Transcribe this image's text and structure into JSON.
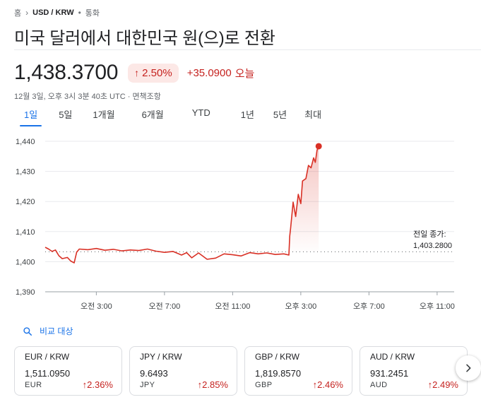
{
  "breadcrumb": {
    "home": "홈",
    "pair": "USD / KRW",
    "category": "통화"
  },
  "title": "미국 달러에서 대한민국 원(으)로 전환",
  "quote": {
    "price": "1,438.3700",
    "percent_change": "2.50%",
    "absolute_change": "+35.0900",
    "period_label": "오늘",
    "timestamp": "12월 3일, 오후 3시 3분 40초 UTC · 면책조항",
    "trend": "up",
    "trend_color": "#c5221f"
  },
  "tabs": [
    {
      "label": "1일",
      "active": true
    },
    {
      "label": "5일",
      "active": false
    },
    {
      "label": "1개월",
      "active": false
    },
    {
      "label": "6개월",
      "active": false
    },
    {
      "label": "YTD",
      "active": false
    },
    {
      "label": "1년",
      "active": false
    },
    {
      "label": "5년",
      "active": false
    },
    {
      "label": "최대",
      "active": false
    }
  ],
  "chart_data": {
    "type": "line",
    "y_ticks": [
      "1,440",
      "1,430",
      "1,420",
      "1,410",
      "1,400",
      "1,390"
    ],
    "x_ticks": [
      "오전 3:00",
      "오전 7:00",
      "오전 11:00",
      "오후 3:00",
      "오후 7:00",
      "오후 11:00"
    ],
    "ylim": [
      1390,
      1440
    ],
    "xlim": [
      0,
      24
    ],
    "previous_close_label": "전일 종가:",
    "previous_close_value": "1,403.2800",
    "previous_close": 1403.28,
    "line_color": "#d93025",
    "grid": true,
    "series": [
      {
        "values": [
          [
            0.0,
            1404.8
          ],
          [
            0.2,
            1404.2
          ],
          [
            0.4,
            1403.4
          ],
          [
            0.6,
            1403.9
          ],
          [
            0.8,
            1402.0
          ],
          [
            1.0,
            1401.0
          ],
          [
            1.3,
            1401.4
          ],
          [
            1.5,
            1400.2
          ],
          [
            1.7,
            1399.6
          ],
          [
            1.85,
            1403.2
          ],
          [
            2.0,
            1404.2
          ],
          [
            2.5,
            1404.0
          ],
          [
            3.0,
            1404.4
          ],
          [
            3.5,
            1403.8
          ],
          [
            4.0,
            1404.1
          ],
          [
            4.5,
            1403.6
          ],
          [
            5.0,
            1403.9
          ],
          [
            5.5,
            1403.7
          ],
          [
            6.0,
            1404.2
          ],
          [
            6.5,
            1403.5
          ],
          [
            7.0,
            1403.1
          ],
          [
            7.5,
            1403.4
          ],
          [
            8.0,
            1402.2
          ],
          [
            8.3,
            1403.0
          ],
          [
            8.6,
            1401.3
          ],
          [
            9.0,
            1402.9
          ],
          [
            9.5,
            1400.8
          ],
          [
            10.0,
            1401.2
          ],
          [
            10.5,
            1402.6
          ],
          [
            11.0,
            1402.3
          ],
          [
            11.5,
            1401.9
          ],
          [
            12.0,
            1403.0
          ],
          [
            12.5,
            1402.6
          ],
          [
            13.0,
            1402.9
          ],
          [
            13.5,
            1402.4
          ],
          [
            14.0,
            1402.6
          ],
          [
            14.3,
            1402.2
          ],
          [
            14.35,
            1408.5
          ],
          [
            14.4,
            1411.0
          ],
          [
            14.55,
            1419.8
          ],
          [
            14.7,
            1415.0
          ],
          [
            14.85,
            1422.4
          ],
          [
            15.0,
            1419.3
          ],
          [
            15.1,
            1426.8
          ],
          [
            15.3,
            1427.6
          ],
          [
            15.45,
            1432.0
          ],
          [
            15.6,
            1431.2
          ],
          [
            15.75,
            1434.5
          ],
          [
            15.85,
            1433.0
          ],
          [
            15.95,
            1437.0
          ],
          [
            16.05,
            1438.37
          ]
        ]
      }
    ]
  },
  "compare_label": "비교 대상",
  "comparison_cards": [
    {
      "pair": "EUR / KRW",
      "value": "1,511.0950",
      "code": "EUR",
      "change": "2.36%"
    },
    {
      "pair": "JPY / KRW",
      "value": "9.6493",
      "code": "JPY",
      "change": "2.85%"
    },
    {
      "pair": "GBP / KRW",
      "value": "1,819.8570",
      "code": "GBP",
      "change": "2.46%"
    },
    {
      "pair": "AUD / KRW",
      "value": "931.2451",
      "code": "AUD",
      "change": "2.49%"
    }
  ]
}
